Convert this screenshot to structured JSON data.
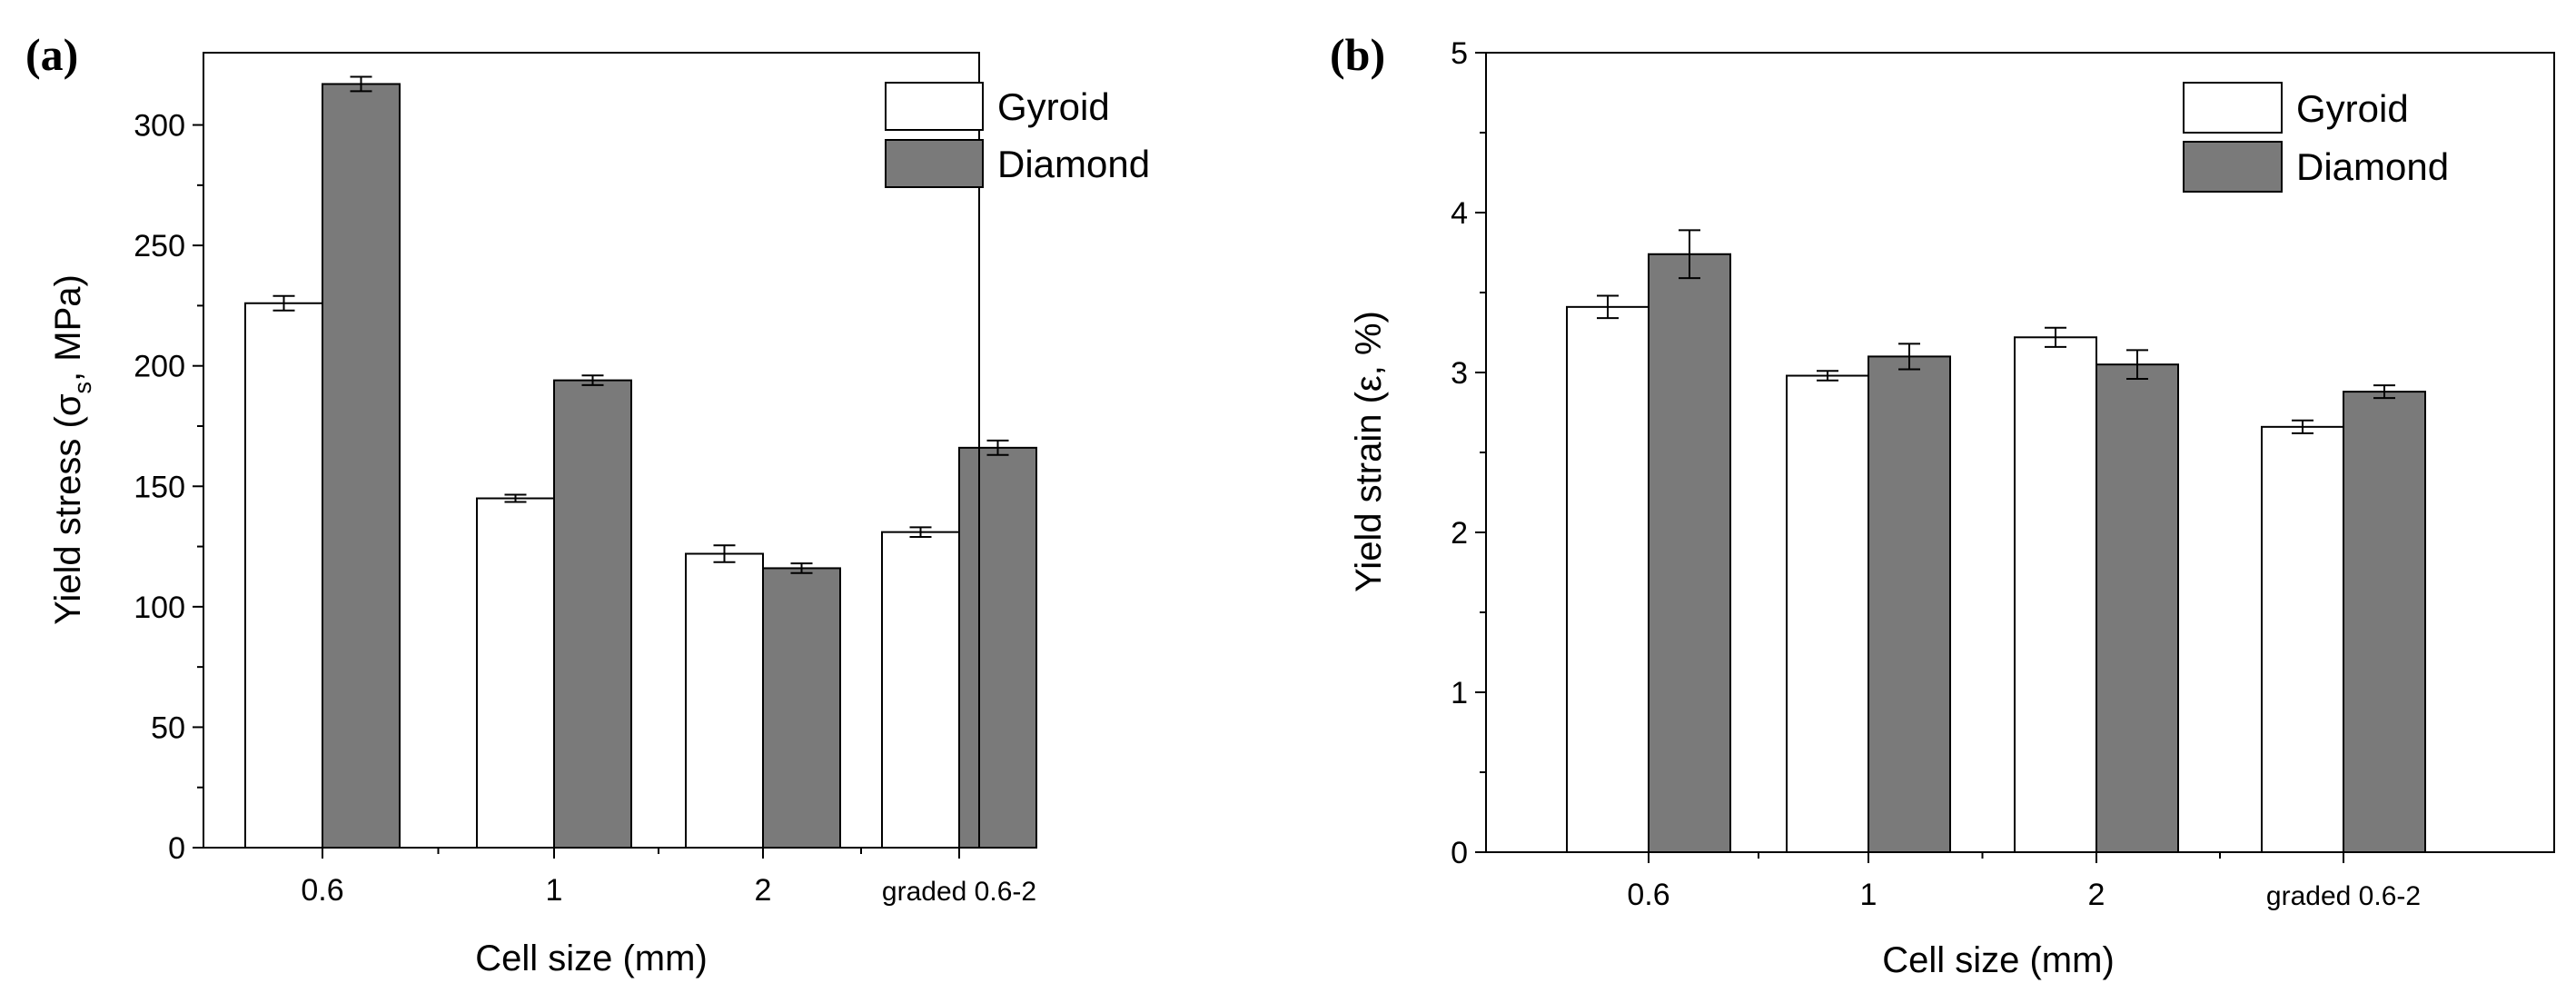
{
  "chart_data": [
    {
      "type": "bar",
      "panel_label": "(a)",
      "categories": [
        "0.6",
        "1",
        "2",
        "graded 0.6-2"
      ],
      "series": [
        {
          "name": "Gyroid",
          "color": "#ffffff",
          "values": [
            226,
            145,
            122,
            131
          ],
          "errors": [
            3,
            1.5,
            3.5,
            2
          ]
        },
        {
          "name": "Diamond",
          "color": "#7a7a7a",
          "values": [
            317,
            194,
            116,
            166
          ],
          "errors": [
            3,
            2,
            2,
            3
          ]
        }
      ],
      "title": "",
      "xlabel": "Cell size (mm)",
      "ylabel_main": "Yield stress  (σ",
      "ylabel_sub": "s",
      "ylabel_tail": ", MPa)",
      "ylim": [
        0,
        330
      ],
      "yticks": [
        0,
        50,
        100,
        150,
        200,
        250,
        300
      ],
      "legend_position": "top-right"
    },
    {
      "type": "bar",
      "panel_label": "(b)",
      "categories": [
        "0.6",
        "1",
        "2",
        "graded 0.6-2"
      ],
      "series": [
        {
          "name": "Gyroid",
          "color": "#ffffff",
          "values": [
            3.41,
            2.98,
            3.22,
            2.66
          ],
          "errors": [
            0.07,
            0.03,
            0.06,
            0.04
          ]
        },
        {
          "name": "Diamond",
          "color": "#7a7a7a",
          "values": [
            3.74,
            3.1,
            3.05,
            2.88
          ],
          "errors": [
            0.15,
            0.08,
            0.09,
            0.04
          ]
        }
      ],
      "title": "",
      "xlabel": "Cell size (mm)",
      "ylabel_main": "Yield strain  (ε, %)",
      "ylabel_sub": "",
      "ylabel_tail": "",
      "ylim": [
        0,
        5
      ],
      "yticks": [
        0,
        1,
        2,
        3,
        4,
        5
      ],
      "legend_position": "top-right"
    }
  ]
}
